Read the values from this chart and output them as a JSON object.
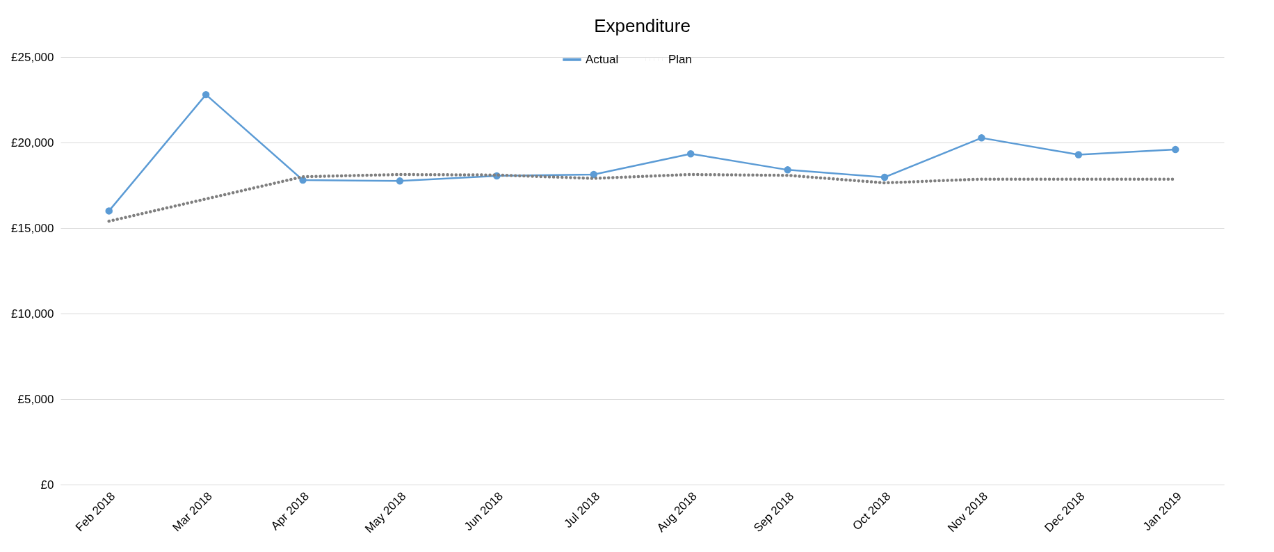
{
  "chart_data": {
    "type": "line",
    "title": "Expenditure",
    "categories": [
      "Feb 2018",
      "Mar 2018",
      "Apr 2018",
      "May 2018",
      "Jun 2018",
      "Jul 2018",
      "Aug 2018",
      "Sep 2018",
      "Oct 2018",
      "Nov 2018",
      "Dec 2018",
      "Jan 2019"
    ],
    "series": [
      {
        "name": "Actual",
        "color": "#5b9bd5",
        "marker": "circle",
        "line_style": "solid",
        "values": [
          16000,
          22800,
          17800,
          17750,
          18050,
          18130,
          19340,
          18400,
          17970,
          20270,
          19290,
          19590
        ]
      },
      {
        "name": "Plan",
        "color": "#7f7f7f",
        "marker": "none",
        "line_style": "dotted",
        "values": [
          15400,
          16700,
          18000,
          18130,
          18100,
          17900,
          18130,
          18080,
          17640,
          17860,
          17860,
          17860
        ]
      }
    ],
    "ylim": [
      0,
      25000
    ],
    "yticks": [
      {
        "value": 0,
        "label": "£0"
      },
      {
        "value": 5000,
        "label": "£5,000"
      },
      {
        "value": 10000,
        "label": "£10,000"
      },
      {
        "value": 15000,
        "label": "£15,000"
      },
      {
        "value": 20000,
        "label": "£20,000"
      },
      {
        "value": 25000,
        "label": "£25,000"
      }
    ],
    "grid": "y",
    "legend": "top"
  }
}
